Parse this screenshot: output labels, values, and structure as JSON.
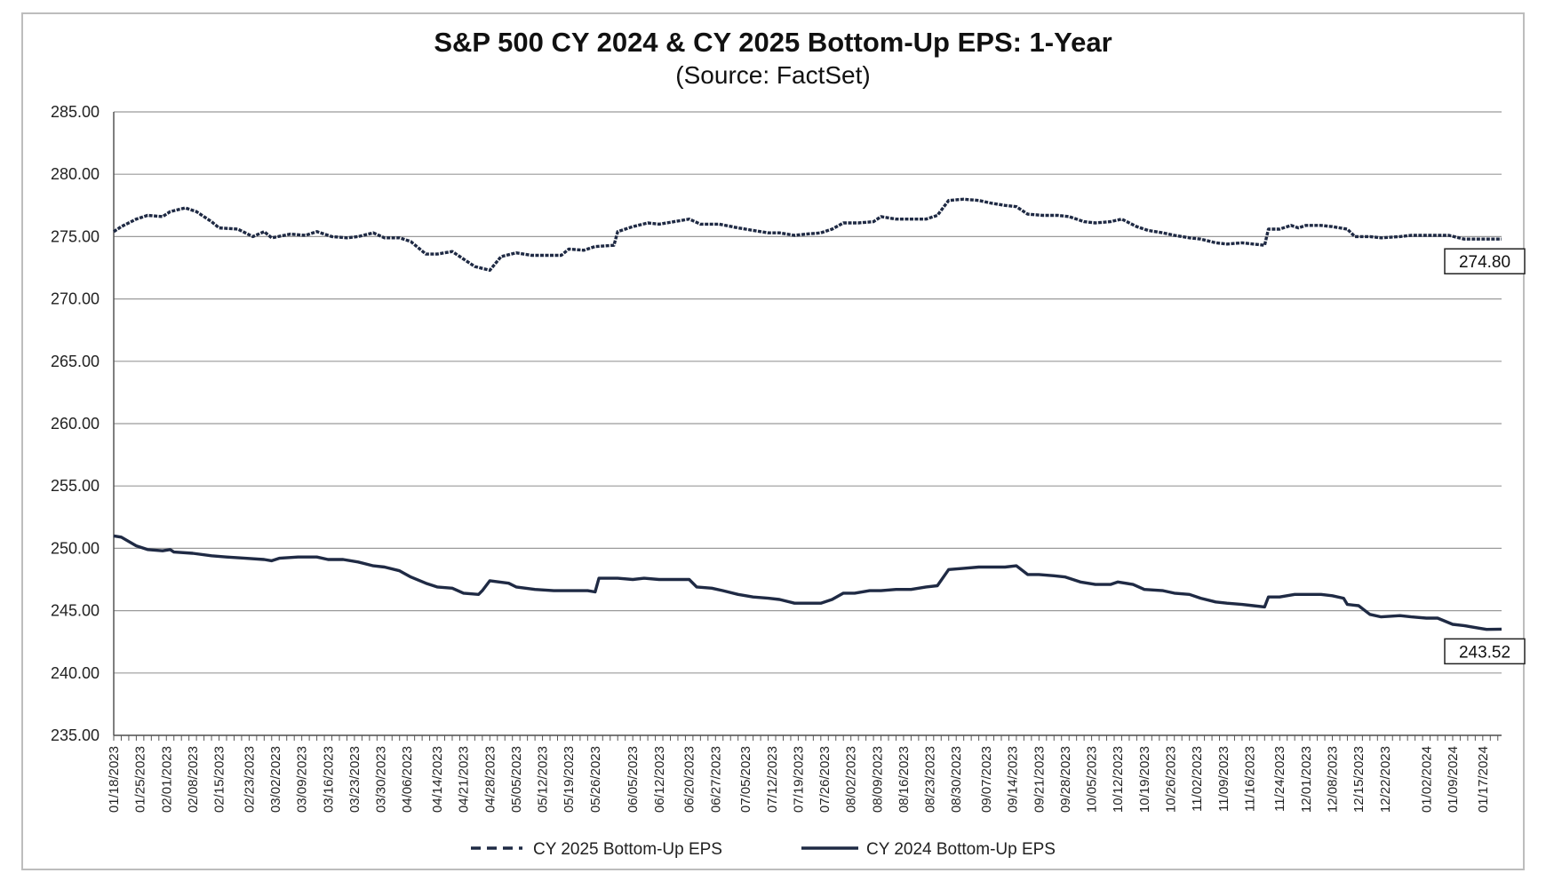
{
  "chart_data": {
    "type": "line",
    "title": "S&P 500 CY 2024 & CY 2025 Bottom-Up EPS: 1-Year",
    "subtitle": "(Source: FactSet)",
    "ylim": [
      235,
      285
    ],
    "yticks": [
      "285.00",
      "280.00",
      "275.00",
      "270.00",
      "265.00",
      "260.00",
      "255.00",
      "250.00",
      "245.00",
      "240.00",
      "235.00"
    ],
    "ytick_values": [
      285,
      280,
      275,
      270,
      265,
      260,
      255,
      250,
      245,
      240,
      235
    ],
    "grid": "horizontal",
    "legend_position": "bottom",
    "xlim": [
      "01/18/2023",
      "01/22/2024"
    ],
    "x_tick_labels": [
      "01/18/2023",
      "01/25/2023",
      "02/01/2023",
      "02/08/2023",
      "02/15/2023",
      "02/23/2023",
      "03/02/2023",
      "03/09/2023",
      "03/16/2023",
      "03/23/2023",
      "03/30/2023",
      "04/06/2023",
      "04/14/2023",
      "04/21/2023",
      "04/28/2023",
      "05/05/2023",
      "05/12/2023",
      "05/19/2023",
      "05/26/2023",
      "06/05/2023",
      "06/12/2023",
      "06/20/2023",
      "06/27/2023",
      "07/05/2023",
      "07/12/2023",
      "07/19/2023",
      "07/26/2023",
      "08/02/2023",
      "08/09/2023",
      "08/16/2023",
      "08/23/2023",
      "08/30/2023",
      "09/07/2023",
      "09/14/2023",
      "09/21/2023",
      "09/28/2023",
      "10/05/2023",
      "10/12/2023",
      "10/19/2023",
      "10/26/2023",
      "11/02/2023",
      "11/09/2023",
      "11/16/2023",
      "11/24/2023",
      "12/01/2023",
      "12/08/2023",
      "12/15/2023",
      "12/22/2023",
      "01/02/2024",
      "01/09/2024",
      "01/17/2024"
    ],
    "series": [
      {
        "name": "CY 2025 Bottom-Up EPS",
        "style": "dashed",
        "color": "#1f2a44",
        "end_label": "274.80",
        "points": [
          [
            "01/18/2023",
            275.4
          ],
          [
            "01/20/2023",
            275.8
          ],
          [
            "01/24/2023",
            276.4
          ],
          [
            "01/27/2023",
            276.7
          ],
          [
            "01/31/2023",
            276.6
          ],
          [
            "02/02/2023",
            277.0
          ],
          [
            "02/06/2023",
            277.3
          ],
          [
            "02/09/2023",
            277.0
          ],
          [
            "02/13/2023",
            276.2
          ],
          [
            "02/15/2023",
            275.7
          ],
          [
            "02/20/2023",
            275.6
          ],
          [
            "02/24/2023",
            275.0
          ],
          [
            "02/27/2023",
            275.4
          ],
          [
            "03/01/2023",
            274.9
          ],
          [
            "03/06/2023",
            275.2
          ],
          [
            "03/10/2023",
            275.1
          ],
          [
            "03/13/2023",
            275.4
          ],
          [
            "03/17/2023",
            275.0
          ],
          [
            "03/21/2023",
            274.9
          ],
          [
            "03/24/2023",
            275.0
          ],
          [
            "03/28/2023",
            275.3
          ],
          [
            "03/31/2023",
            274.9
          ],
          [
            "04/04/2023",
            274.9
          ],
          [
            "04/07/2023",
            274.6
          ],
          [
            "04/11/2023",
            273.6
          ],
          [
            "04/14/2023",
            273.6
          ],
          [
            "04/18/2023",
            273.8
          ],
          [
            "04/21/2023",
            273.2
          ],
          [
            "04/24/2023",
            272.6
          ],
          [
            "04/28/2023",
            272.3
          ],
          [
            "05/01/2023",
            273.4
          ],
          [
            "05/05/2023",
            273.7
          ],
          [
            "05/09/2023",
            273.5
          ],
          [
            "05/12/2023",
            273.5
          ],
          [
            "05/17/2023",
            273.5
          ],
          [
            "05/19/2023",
            274.0
          ],
          [
            "05/23/2023",
            273.9
          ],
          [
            "05/26/2023",
            274.2
          ],
          [
            "05/31/2023",
            274.3
          ],
          [
            "06/01/2023",
            275.4
          ],
          [
            "06/05/2023",
            275.8
          ],
          [
            "06/09/2023",
            276.1
          ],
          [
            "06/12/2023",
            276.0
          ],
          [
            "06/16/2023",
            276.2
          ],
          [
            "06/20/2023",
            276.4
          ],
          [
            "06/23/2023",
            276.0
          ],
          [
            "06/28/2023",
            276.0
          ],
          [
            "07/03/2023",
            275.7
          ],
          [
            "07/07/2023",
            275.5
          ],
          [
            "07/11/2023",
            275.3
          ],
          [
            "07/14/2023",
            275.3
          ],
          [
            "07/18/2023",
            275.1
          ],
          [
            "07/21/2023",
            275.2
          ],
          [
            "07/25/2023",
            275.3
          ],
          [
            "07/28/2023",
            275.6
          ],
          [
            "07/31/2023",
            276.1
          ],
          [
            "08/04/2023",
            276.1
          ],
          [
            "08/08/2023",
            276.2
          ],
          [
            "08/10/2023",
            276.6
          ],
          [
            "08/14/2023",
            276.4
          ],
          [
            "08/18/2023",
            276.4
          ],
          [
            "08/22/2023",
            276.4
          ],
          [
            "08/25/2023",
            276.7
          ],
          [
            "08/28/2023",
            277.9
          ],
          [
            "09/01/2023",
            278.0
          ],
          [
            "09/05/2023",
            277.9
          ],
          [
            "09/08/2023",
            277.7
          ],
          [
            "09/12/2023",
            277.5
          ],
          [
            "09/15/2023",
            277.4
          ],
          [
            "09/18/2023",
            276.8
          ],
          [
            "09/22/2023",
            276.7
          ],
          [
            "09/26/2023",
            276.7
          ],
          [
            "09/29/2023",
            276.6
          ],
          [
            "10/03/2023",
            276.2
          ],
          [
            "10/06/2023",
            276.1
          ],
          [
            "10/10/2023",
            276.2
          ],
          [
            "10/13/2023",
            276.4
          ],
          [
            "10/17/2023",
            275.8
          ],
          [
            "10/20/2023",
            275.5
          ],
          [
            "10/24/2023",
            275.3
          ],
          [
            "10/27/2023",
            275.1
          ],
          [
            "10/31/2023",
            274.9
          ],
          [
            "11/03/2023",
            274.8
          ],
          [
            "11/07/2023",
            274.5
          ],
          [
            "11/10/2023",
            274.4
          ],
          [
            "11/14/2023",
            274.5
          ],
          [
            "11/17/2023",
            274.4
          ],
          [
            "11/20/2023",
            274.3
          ],
          [
            "11/21/2023",
            275.6
          ],
          [
            "11/24/2023",
            275.6
          ],
          [
            "11/27/2023",
            275.9
          ],
          [
            "11/29/2023",
            275.7
          ],
          [
            "12/01/2023",
            275.9
          ],
          [
            "12/05/2023",
            275.9
          ],
          [
            "12/08/2023",
            275.8
          ],
          [
            "12/12/2023",
            275.6
          ],
          [
            "12/14/2023",
            275.0
          ],
          [
            "12/18/2023",
            275.0
          ],
          [
            "12/21/2023",
            274.9
          ],
          [
            "12/26/2023",
            275.0
          ],
          [
            "12/29/2023",
            275.1
          ],
          [
            "01/03/2024",
            275.1
          ],
          [
            "01/08/2024",
            275.1
          ],
          [
            "01/12/2024",
            274.8
          ],
          [
            "01/18/2024",
            274.8
          ],
          [
            "01/22/2024",
            274.8
          ]
        ]
      },
      {
        "name": "CY 2024 Bottom-Up EPS",
        "style": "solid",
        "color": "#1f2a44",
        "end_label": "243.52",
        "points": [
          [
            "01/18/2023",
            251.0
          ],
          [
            "01/20/2023",
            250.9
          ],
          [
            "01/24/2023",
            250.2
          ],
          [
            "01/27/2023",
            249.9
          ],
          [
            "01/31/2023",
            249.8
          ],
          [
            "02/02/2023",
            249.9
          ],
          [
            "02/03/2023",
            249.7
          ],
          [
            "02/08/2023",
            249.6
          ],
          [
            "02/13/2023",
            249.4
          ],
          [
            "02/17/2023",
            249.3
          ],
          [
            "02/22/2023",
            249.2
          ],
          [
            "02/27/2023",
            249.1
          ],
          [
            "03/01/2023",
            249.0
          ],
          [
            "03/03/2023",
            249.2
          ],
          [
            "03/08/2023",
            249.3
          ],
          [
            "03/13/2023",
            249.3
          ],
          [
            "03/16/2023",
            249.1
          ],
          [
            "03/20/2023",
            249.1
          ],
          [
            "03/24/2023",
            248.9
          ],
          [
            "03/28/2023",
            248.6
          ],
          [
            "03/31/2023",
            248.5
          ],
          [
            "04/04/2023",
            248.2
          ],
          [
            "04/07/2023",
            247.7
          ],
          [
            "04/11/2023",
            247.2
          ],
          [
            "04/14/2023",
            246.9
          ],
          [
            "04/18/2023",
            246.8
          ],
          [
            "04/21/2023",
            246.4
          ],
          [
            "04/25/2023",
            246.3
          ],
          [
            "04/26/2023",
            246.6
          ],
          [
            "04/28/2023",
            247.4
          ],
          [
            "05/03/2023",
            247.2
          ],
          [
            "05/05/2023",
            246.9
          ],
          [
            "05/10/2023",
            246.7
          ],
          [
            "05/15/2023",
            246.6
          ],
          [
            "05/19/2023",
            246.6
          ],
          [
            "05/24/2023",
            246.6
          ],
          [
            "05/26/2023",
            246.5
          ],
          [
            "05/27/2023",
            247.6
          ],
          [
            "06/01/2023",
            247.6
          ],
          [
            "06/05/2023",
            247.5
          ],
          [
            "06/08/2023",
            247.6
          ],
          [
            "06/12/2023",
            247.5
          ],
          [
            "06/16/2023",
            247.5
          ],
          [
            "06/20/2023",
            247.5
          ],
          [
            "06/22/2023",
            246.9
          ],
          [
            "06/26/2023",
            246.8
          ],
          [
            "06/29/2023",
            246.6
          ],
          [
            "07/03/2023",
            246.3
          ],
          [
            "07/07/2023",
            246.1
          ],
          [
            "07/11/2023",
            246.0
          ],
          [
            "07/14/2023",
            245.9
          ],
          [
            "07/18/2023",
            245.6
          ],
          [
            "07/21/2023",
            245.6
          ],
          [
            "07/25/2023",
            245.6
          ],
          [
            "07/28/2023",
            245.9
          ],
          [
            "07/31/2023",
            246.4
          ],
          [
            "08/03/2023",
            246.4
          ],
          [
            "08/07/2023",
            246.6
          ],
          [
            "08/10/2023",
            246.6
          ],
          [
            "08/14/2023",
            246.7
          ],
          [
            "08/18/2023",
            246.7
          ],
          [
            "08/22/2023",
            246.9
          ],
          [
            "08/25/2023",
            247.0
          ],
          [
            "08/28/2023",
            248.3
          ],
          [
            "09/01/2023",
            248.4
          ],
          [
            "09/05/2023",
            248.5
          ],
          [
            "09/08/2023",
            248.5
          ],
          [
            "09/12/2023",
            248.5
          ],
          [
            "09/15/2023",
            248.6
          ],
          [
            "09/18/2023",
            247.9
          ],
          [
            "09/21/2023",
            247.9
          ],
          [
            "09/25/2023",
            247.8
          ],
          [
            "09/28/2023",
            247.7
          ],
          [
            "10/02/2023",
            247.3
          ],
          [
            "10/06/2023",
            247.1
          ],
          [
            "10/10/2023",
            247.1
          ],
          [
            "10/12/2023",
            247.3
          ],
          [
            "10/16/2023",
            247.1
          ],
          [
            "10/19/2023",
            246.7
          ],
          [
            "10/24/2023",
            246.6
          ],
          [
            "10/27/2023",
            246.4
          ],
          [
            "10/31/2023",
            246.3
          ],
          [
            "11/03/2023",
            246.0
          ],
          [
            "11/07/2023",
            245.7
          ],
          [
            "11/10/2023",
            245.6
          ],
          [
            "11/14/2023",
            245.5
          ],
          [
            "11/17/2023",
            245.4
          ],
          [
            "11/20/2023",
            245.3
          ],
          [
            "11/21/2023",
            246.1
          ],
          [
            "11/24/2023",
            246.1
          ],
          [
            "11/28/2023",
            246.3
          ],
          [
            "12/01/2023",
            246.3
          ],
          [
            "12/05/2023",
            246.3
          ],
          [
            "12/08/2023",
            246.2
          ],
          [
            "12/11/2023",
            246.0
          ],
          [
            "12/12/2023",
            245.5
          ],
          [
            "12/15/2023",
            245.4
          ],
          [
            "12/18/2023",
            244.7
          ],
          [
            "12/21/2023",
            244.5
          ],
          [
            "12/26/2023",
            244.6
          ],
          [
            "12/29/2023",
            244.5
          ],
          [
            "01/02/2024",
            244.4
          ],
          [
            "01/05/2024",
            244.4
          ],
          [
            "01/09/2024",
            243.9
          ],
          [
            "01/12/2024",
            243.8
          ],
          [
            "01/16/2024",
            243.6
          ],
          [
            "01/18/2024",
            243.5
          ],
          [
            "01/22/2024",
            243.52
          ]
        ]
      }
    ]
  }
}
